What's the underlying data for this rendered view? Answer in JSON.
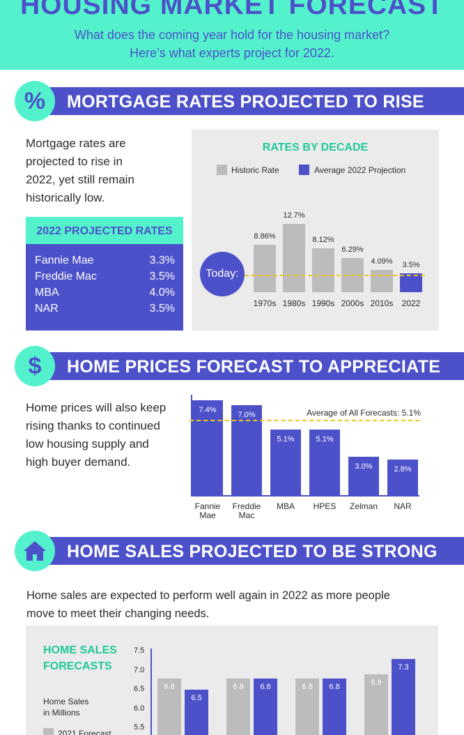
{
  "header": {
    "title": "HOUSING MARKET FORECAST",
    "subtitle_line1": "What does the coming year hold for the housing market?",
    "subtitle_line2": "Here’s what experts project for 2022."
  },
  "colors": {
    "accent": "#53f2cc",
    "brand": "#4c51c9",
    "historic": "#bcbcbc",
    "average_line": "#f2c418",
    "panel": "#ebebeb"
  },
  "mortgage": {
    "icon": "percent-icon",
    "icon_glyph": "%",
    "title": "MORTGAGE RATES PROJECTED TO RISE",
    "text_lines": [
      "Mortgage rates are",
      "projected to rise in",
      "2022, yet still remain",
      "historically low."
    ],
    "rates_title": "2022 PROJECTED RATES",
    "rates": [
      {
        "name": "Fannie Mae",
        "value": "3.3%"
      },
      {
        "name": "Freddie Mac",
        "value": "3.5%"
      },
      {
        "name": "MBA",
        "value": "4.0%"
      },
      {
        "name": "NAR",
        "value": "3.5%"
      }
    ],
    "today_label": "Today:"
  },
  "prices": {
    "icon": "dollar-icon",
    "icon_glyph": "$",
    "title": "HOME PRICES FORECAST TO APPRECIATE",
    "text_lines": [
      "Home prices will also keep",
      "rising thanks to continued",
      "low housing supply and",
      "high buyer demand."
    ]
  },
  "sales": {
    "icon": "house-icon",
    "title": "HOME SALES PROJECTED TO BE STRONG",
    "text_lines": [
      "Home sales are expected to perform well again in 2022 as more people",
      "move to meet their changing needs."
    ]
  },
  "chart_data": [
    {
      "type": "bar",
      "title": "RATES BY DECADE",
      "categories": [
        "1970s",
        "1980s",
        "1990s",
        "2000s",
        "2010s",
        "2022"
      ],
      "values": [
        8.86,
        12.7,
        8.12,
        6.29,
        4.09,
        3.5
      ],
      "value_labels": [
        "8.86%",
        "12.7%",
        "8.12%",
        "6.29%",
        "4.09%",
        "3.5%"
      ],
      "series_colors": [
        "#bcbcbc",
        "#bcbcbc",
        "#bcbcbc",
        "#bcbcbc",
        "#bcbcbc",
        "#4c51c9"
      ],
      "legend": [
        {
          "name": "Historic Rate",
          "color": "#bcbcbc"
        },
        {
          "name": "Average 2022 Projection",
          "color": "#4c51c9"
        }
      ],
      "legend_position": "top",
      "reference_line": {
        "value": 3.1,
        "label": "Today:"
      },
      "ylim": [
        0,
        13.5
      ],
      "grid": false
    },
    {
      "type": "bar",
      "title": "",
      "categories": [
        "Fannie Mae",
        "Freddie Mac",
        "MBA",
        "HPES",
        "Zelman",
        "NAR"
      ],
      "category_lines": [
        [
          "Fannie",
          "Mae"
        ],
        [
          "Freddie",
          "Mac"
        ],
        [
          "MBA"
        ],
        [
          "HPES"
        ],
        [
          "Zelman"
        ],
        [
          "NAR"
        ]
      ],
      "values": [
        7.4,
        7.0,
        5.1,
        5.1,
        3.0,
        2.8
      ],
      "value_labels": [
        "7.4%",
        "7.0%",
        "5.1%",
        "5.1%",
        "3.0%",
        "2.8%"
      ],
      "reference_line": {
        "value": 5.1,
        "label": "Average of All Forecasts: 5.1%"
      },
      "ylim": [
        0,
        7.8
      ],
      "grid": false
    },
    {
      "type": "bar",
      "title": "HOME SALES FORECASTS",
      "title_lines": [
        "HOME SALES",
        "FORECASTS"
      ],
      "ylabel_lines": [
        "Home Sales",
        "in Millions"
      ],
      "yticks": [
        7.5,
        7.0,
        6.5,
        6.0,
        5.5
      ],
      "ytick_labels": [
        "7.5",
        "7.0",
        "6.5",
        "6.0",
        "5.5"
      ],
      "legend": [
        {
          "name": "2021 Forecast",
          "color": "#bcbcbc"
        }
      ],
      "series": [
        {
          "name": "2021 Forecast",
          "values": [
            6.8,
            6.8,
            6.8,
            6.9
          ]
        },
        {
          "name": "",
          "values": [
            6.5,
            6.8,
            6.8,
            7.3
          ]
        }
      ],
      "value_labels": [
        [
          "6.8",
          "6.8",
          "6.8",
          "6.9"
        ],
        [
          "6.5",
          "6.8",
          "6.8",
          "7.3"
        ]
      ],
      "ylim": [
        5.0,
        7.6
      ],
      "grid": false
    }
  ]
}
